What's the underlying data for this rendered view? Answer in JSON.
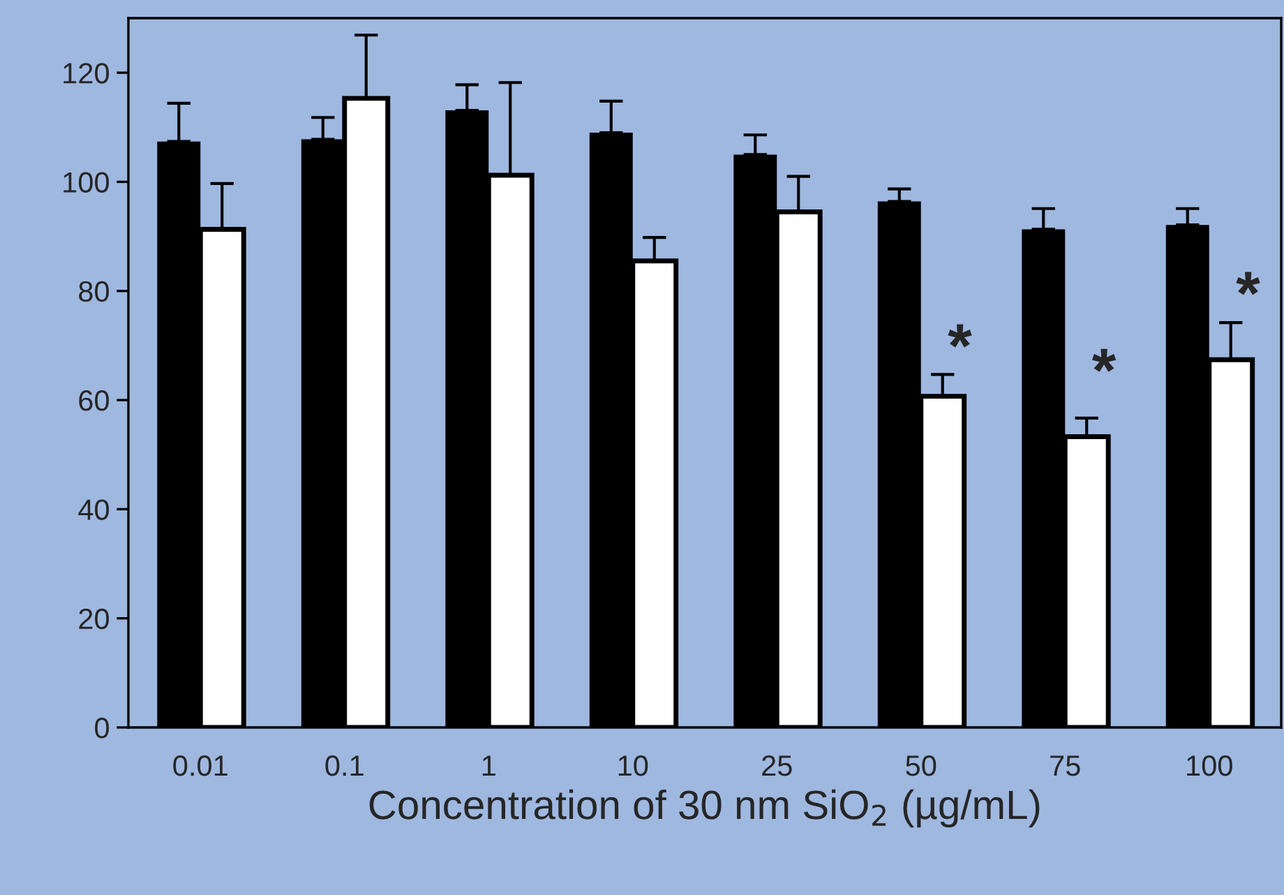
{
  "chart_data": {
    "type": "bar",
    "xlabel": "Concentration of 30 nm SiO$_{2}$ (µg/mL)",
    "categories": [
      "0.01",
      "0.1",
      "1",
      "10",
      "25",
      "50",
      "75",
      "100"
    ],
    "series": [
      {
        "color": "#000000",
        "values": [
          107.4,
          107.8,
          113.1,
          109,
          105,
          96.4,
          91.3,
          92.1
        ],
        "errors": [
          7,
          4,
          4.7,
          5.8,
          3.6,
          2.3,
          3.8,
          3
        ]
      },
      {
        "color": "#ffffff",
        "values": [
          91.3,
          115.3,
          101.2,
          85.5,
          94.5,
          60.7,
          53.3,
          67.4
        ],
        "errors": [
          8.4,
          11.6,
          17,
          4.3,
          6.5,
          4,
          3.4,
          6.8
        ]
      }
    ],
    "ylim": [
      0,
      130
    ],
    "yticks": [
      0,
      20,
      40,
      60,
      80,
      100,
      120
    ],
    "grid": false,
    "legend": false,
    "annotations": [
      {
        "text": "*",
        "x": "50",
        "y": 69
      },
      {
        "text": "*",
        "x": "75",
        "y": 64.5
      },
      {
        "text": "*",
        "x": "100",
        "y": 78.6
      }
    ]
  }
}
